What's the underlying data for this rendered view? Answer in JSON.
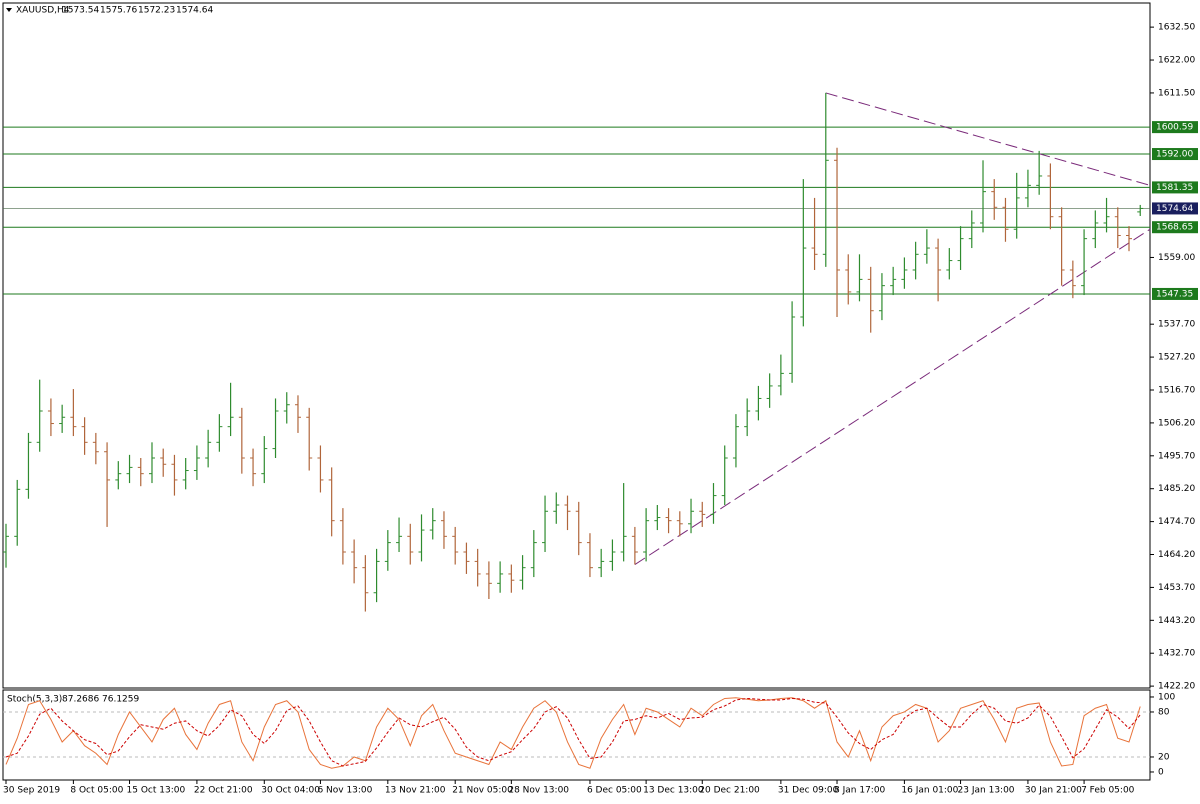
{
  "chart_data": [
    {
      "type": "ohlc",
      "symbol": "XAUUSD,H4",
      "up_color": "#2e8b2e",
      "down_color": "#b0653a",
      "ylim": [
        1421.6,
        1640.2
      ],
      "yticks": [
        {
          "value": 1632.5,
          "label": "1632.50"
        },
        {
          "value": 1622,
          "label": "1622.00"
        },
        {
          "value": 1611.5,
          "label": "1611.50"
        },
        {
          "value": 1559,
          "label": "1559.00"
        },
        {
          "value": 1537.7,
          "label": "1537.70"
        },
        {
          "value": 1527.2,
          "label": "1527.20"
        },
        {
          "value": 1516.7,
          "label": "1516.70"
        },
        {
          "value": 1506.2,
          "label": "1506.20"
        },
        {
          "value": 1495.7,
          "label": "1495.70"
        },
        {
          "value": 1485.2,
          "label": "1485.20"
        },
        {
          "value": 1474.7,
          "label": "1474.70"
        },
        {
          "value": 1464.2,
          "label": "1464.20"
        },
        {
          "value": 1453.7,
          "label": "1453.70"
        },
        {
          "value": 1443.2,
          "label": "1443.20"
        },
        {
          "value": 1432.7,
          "label": "1432.70"
        },
        {
          "value": 1422.2,
          "label": "1422.20"
        }
      ],
      "levels": [
        1600.59,
        {
          "value": 1592,
          "label": "1592.00"
        },
        1581.35,
        1568.65,
        1547.35
      ],
      "level_color": "#1d7a1d",
      "current_color": "#1a1f5e",
      "trendlines": [
        {
          "from": [
            73,
            1611.5
          ],
          "to": [
            102,
            1582
          ],
          "color": "#7a2a7a"
        },
        {
          "from": [
            56,
            1461
          ],
          "to": [
            102,
            1568
          ],
          "color": "#7a2a7a"
        }
      ],
      "categories": [
        "30 Sep 2019",
        null,
        null,
        null,
        null,
        null,
        "8 Oct 05:00",
        null,
        null,
        null,
        null,
        "15 Oct 13:00",
        null,
        null,
        null,
        null,
        null,
        "22 Oct 21:00",
        null,
        null,
        null,
        null,
        null,
        "30 Oct 04:00",
        null,
        null,
        null,
        null,
        "6 Nov 13:00",
        null,
        null,
        null,
        null,
        null,
        "13 Nov 21:00",
        null,
        null,
        null,
        null,
        null,
        "21 Nov 05:00",
        null,
        null,
        null,
        null,
        "28 Nov 13:00",
        null,
        null,
        null,
        null,
        null,
        null,
        "6 Dec 05:00",
        null,
        null,
        null,
        null,
        "13 Dec 13:00",
        null,
        null,
        null,
        null,
        "20 Dec 21:00",
        null,
        null,
        null,
        null,
        null,
        null,
        "31 Dec 09:00",
        null,
        null,
        null,
        null,
        "8 Jan 17:00",
        null,
        null,
        null,
        null,
        null,
        "16 Jan 01:00",
        null,
        null,
        null,
        null,
        "23 Jan 13:00",
        null,
        null,
        null,
        null,
        null,
        "30 Jan 21:00",
        null,
        null,
        null,
        null,
        "7 Feb 05:00",
        null,
        null,
        null,
        null,
        null
      ],
      "ohlc": [
        [
          1465,
          1474,
          1460,
          1470
        ],
        [
          1470,
          1488,
          1467,
          1485
        ],
        [
          1485,
          1503,
          1482,
          1500
        ],
        [
          1500,
          1520,
          1497,
          1510
        ],
        [
          1510,
          1514,
          1502,
          1506
        ],
        [
          1506,
          1512,
          1503,
          1508
        ],
        [
          1508,
          1517,
          1502,
          1505
        ],
        [
          1505,
          1508,
          1496,
          1500
        ],
        [
          1500,
          1503,
          1493,
          1497
        ],
        [
          1497,
          1500,
          1473,
          1488
        ],
        [
          1488,
          1494,
          1485,
          1490
        ],
        [
          1490,
          1496,
          1487,
          1492
        ],
        [
          1492,
          1495,
          1486,
          1490
        ],
        [
          1490,
          1500,
          1487,
          1495
        ],
        [
          1495,
          1498,
          1489,
          1493
        ],
        [
          1493,
          1496,
          1483,
          1488
        ],
        [
          1488,
          1495,
          1485,
          1491
        ],
        [
          1491,
          1499,
          1488,
          1495
        ],
        [
          1495,
          1504,
          1492,
          1500
        ],
        [
          1500,
          1509,
          1497,
          1505
        ],
        [
          1505,
          1519,
          1502,
          1508
        ],
        [
          1508,
          1511,
          1490,
          1495
        ],
        [
          1495,
          1498,
          1486,
          1490
        ],
        [
          1490,
          1502,
          1487,
          1498
        ],
        [
          1498,
          1514,
          1495,
          1510
        ],
        [
          1510,
          1516,
          1506,
          1512
        ],
        [
          1512,
          1515,
          1503,
          1508
        ],
        [
          1508,
          1511,
          1491,
          1495
        ],
        [
          1495,
          1499,
          1484,
          1488
        ],
        [
          1488,
          1492,
          1470,
          1475
        ],
        [
          1475,
          1479,
          1461,
          1465
        ],
        [
          1465,
          1469,
          1455,
          1460
        ],
        [
          1460,
          1464,
          1446,
          1452
        ],
        [
          1452,
          1466,
          1449,
          1462
        ],
        [
          1462,
          1472,
          1459,
          1468
        ],
        [
          1468,
          1476,
          1465,
          1470
        ],
        [
          1470,
          1474,
          1461,
          1465
        ],
        [
          1465,
          1477,
          1462,
          1472
        ],
        [
          1472,
          1479,
          1469,
          1475
        ],
        [
          1475,
          1478,
          1466,
          1470
        ],
        [
          1470,
          1473,
          1461,
          1465
        ],
        [
          1465,
          1468,
          1458,
          1462
        ],
        [
          1462,
          1466,
          1454,
          1458
        ],
        [
          1458,
          1462,
          1450,
          1455
        ],
        [
          1455,
          1462,
          1452,
          1458
        ],
        [
          1458,
          1461,
          1452,
          1456
        ],
        [
          1456,
          1464,
          1453,
          1460
        ],
        [
          1460,
          1472,
          1457,
          1468
        ],
        [
          1468,
          1483,
          1465,
          1478
        ],
        [
          1478,
          1484,
          1474,
          1480
        ],
        [
          1480,
          1483,
          1472,
          1478
        ],
        [
          1478,
          1481,
          1464,
          1468
        ],
        [
          1468,
          1471,
          1457,
          1460
        ],
        [
          1460,
          1466,
          1457,
          1462
        ],
        [
          1462,
          1469,
          1459,
          1465
        ],
        [
          1465,
          1487,
          1462,
          1470
        ],
        [
          1470,
          1473,
          1461,
          1465
        ],
        [
          1465,
          1479,
          1462,
          1475
        ],
        [
          1475,
          1480,
          1472,
          1476
        ],
        [
          1476,
          1479,
          1471,
          1475
        ],
        [
          1475,
          1478,
          1470,
          1474
        ],
        [
          1474,
          1482,
          1471,
          1478
        ],
        [
          1478,
          1481,
          1473,
          1477
        ],
        [
          1477,
          1487,
          1474,
          1483
        ],
        [
          1483,
          1499,
          1480,
          1495
        ],
        [
          1495,
          1509,
          1492,
          1505
        ],
        [
          1505,
          1514,
          1502,
          1510
        ],
        [
          1510,
          1518,
          1507,
          1514
        ],
        [
          1514,
          1522,
          1511,
          1518
        ],
        [
          1518,
          1528,
          1515,
          1522
        ],
        [
          1522,
          1545,
          1519,
          1540
        ],
        [
          1540,
          1584,
          1537,
          1562
        ],
        [
          1562,
          1578,
          1555,
          1560
        ],
        [
          1560,
          1611.5,
          1556,
          1590
        ],
        [
          1590,
          1594,
          1540,
          1555
        ],
        [
          1555,
          1560,
          1544,
          1548
        ],
        [
          1548,
          1560,
          1545,
          1552
        ],
        [
          1552,
          1556,
          1535,
          1542
        ],
        [
          1542,
          1554,
          1539,
          1550
        ],
        [
          1550,
          1556,
          1547,
          1552
        ],
        [
          1552,
          1559,
          1549,
          1555
        ],
        [
          1555,
          1564,
          1552,
          1560
        ],
        [
          1560,
          1568,
          1557,
          1562
        ],
        [
          1562,
          1565,
          1545,
          1555
        ],
        [
          1555,
          1562,
          1552,
          1558
        ],
        [
          1558,
          1569,
          1555,
          1565
        ],
        [
          1565,
          1574,
          1562,
          1570
        ],
        [
          1570,
          1590,
          1567,
          1580
        ],
        [
          1580,
          1584,
          1571,
          1575
        ],
        [
          1575,
          1578,
          1564,
          1568
        ],
        [
          1568,
          1586,
          1565,
          1578
        ],
        [
          1578,
          1587,
          1575,
          1582
        ],
        [
          1582,
          1593,
          1579,
          1585
        ],
        [
          1585,
          1589,
          1568,
          1572
        ],
        [
          1572,
          1575,
          1550,
          1555
        ],
        [
          1555,
          1558,
          1546,
          1550
        ],
        [
          1550,
          1568,
          1547,
          1565
        ],
        [
          1565,
          1574,
          1562,
          1570
        ],
        [
          1570,
          1578,
          1567,
          1572
        ],
        [
          1572,
          1575,
          1562,
          1566
        ],
        [
          1566,
          1569,
          1561,
          1565
        ],
        [
          1573.54,
          1575.76,
          1572.23,
          1574.64
        ]
      ]
    },
    {
      "type": "line",
      "name": "Stoch(5,3,3)",
      "ylim": [
        -10.7,
        109.3
      ],
      "yticks": [
        100,
        80,
        20,
        0
      ],
      "levels": [
        80,
        20
      ],
      "series": [
        {
          "color": "#e8733a",
          "dash": false,
          "values": [
            10,
            45,
            90,
            95,
            70,
            40,
            55,
            35,
            25,
            10,
            50,
            80,
            60,
            40,
            70,
            85,
            50,
            30,
            65,
            90,
            95,
            40,
            15,
            60,
            90,
            95,
            80,
            30,
            10,
            5,
            8,
            20,
            15,
            60,
            85,
            70,
            35,
            75,
            90,
            55,
            25,
            20,
            15,
            10,
            40,
            30,
            60,
            85,
            95,
            80,
            40,
            10,
            5,
            45,
            70,
            90,
            50,
            85,
            80,
            70,
            60,
            85,
            75,
            90,
            98,
            99,
            97,
            95,
            96,
            98,
            99,
            95,
            85,
            95,
            40,
            20,
            55,
            15,
            60,
            75,
            80,
            90,
            85,
            40,
            55,
            85,
            90,
            95,
            70,
            40,
            85,
            90,
            92,
            40,
            8,
            10,
            75,
            85,
            90,
            45,
            40,
            87.2686
          ]
        },
        {
          "color": "#cc0000",
          "dash": true,
          "values": [
            20,
            25,
            48,
            77,
            85,
            68,
            55,
            43,
            38,
            23,
            28,
            47,
            63,
            60,
            57,
            65,
            68,
            55,
            48,
            62,
            83,
            75,
            50,
            38,
            55,
            82,
            88,
            68,
            40,
            15,
            8,
            11,
            14,
            32,
            53,
            72,
            63,
            60,
            67,
            73,
            57,
            33,
            20,
            15,
            22,
            27,
            43,
            58,
            80,
            87,
            72,
            43,
            18,
            20,
            40,
            68,
            70,
            75,
            72,
            78,
            70,
            72,
            73,
            83,
            88,
            96,
            98,
            97,
            96,
            96,
            98,
            97,
            93,
            92,
            73,
            52,
            38,
            30,
            43,
            50,
            72,
            82,
            85,
            72,
            60,
            60,
            77,
            90,
            85,
            68,
            65,
            72,
            89,
            74,
            47,
            19,
            31,
            57,
            83,
            73,
            58,
            76.1259
          ]
        }
      ]
    }
  ]
}
